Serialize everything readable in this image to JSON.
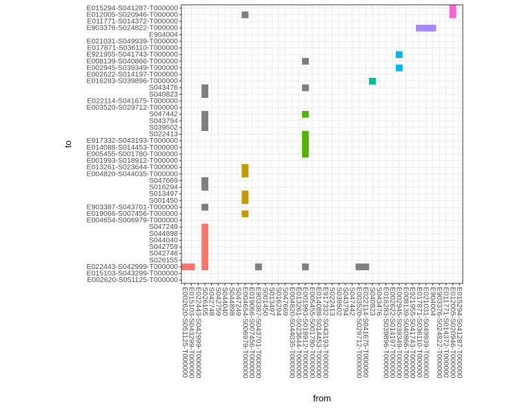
{
  "chart_data": {
    "type": "heatmap",
    "title": "",
    "xlabel": "from",
    "ylabel": "to",
    "grid": true,
    "legend": "none",
    "x_categories": [
      "E002620-S051125-T000000",
      "E015103-S043299-T000000",
      "E022443-S042999-T000000",
      "S026155",
      "S042748",
      "S042759",
      "S044040",
      "S044898",
      "S047249",
      "E004654-S006979-T000000",
      "E019066-S007456-T000000",
      "E903387-S043701-T000000",
      "S001450",
      "S013497",
      "S016294",
      "S047669",
      "E004820-S044035-T000000",
      "E013261-S023644-T000000",
      "E001993-S018912-T000000",
      "E005455-S001780-T000000",
      "E014088-S014453-T000000",
      "E917332-S043193-T000000",
      "S022413",
      "S039502",
      "S043794",
      "S047442",
      "E003520-S029712-T000000",
      "E022114-S041675-T000000",
      "S040823",
      "S043476",
      "E016283-S039896-T000000",
      "E002622-S014197-T000000",
      "E002945-S039349-T000000",
      "E008139-S040866-T000000",
      "E921955-S041743-T000000",
      "E017871-S036110-T000000",
      "E021031-S049939-T000000",
      "E904004",
      "E903376-S024822-T000000",
      "E011771-S014372-T000000",
      "E012005-S020946-T000000",
      "E015294-S041287-T000000"
    ],
    "y_categories": [
      "E002620-S051125-T000000",
      "E015103-S043299-T000000",
      "E022443-S042999-T000000",
      "S026155",
      "S042748",
      "S042759",
      "S044040",
      "S044898",
      "S047249",
      "E004654-S006979-T000000",
      "E019066-S007456-T000000",
      "E903387-S043701-T000000",
      "S001450",
      "S013497",
      "S016294",
      "S047669",
      "E004820-S044035-T000000",
      "E013261-S023644-T000000",
      "E001993-S018912-T000000",
      "E005455-S001780-T000000",
      "E014088-S014453-T000000",
      "E917332-S043193-T000000",
      "S022413",
      "S039502",
      "S043794",
      "S047442",
      "E003520-S029712-T000000",
      "E022114-S041675-T000000",
      "S040823",
      "S043476",
      "E016283-S039896-T000000",
      "E002622-S014197-T000000",
      "E002945-S039349-T000000",
      "E008139-S040866-T000000",
      "E921955-S041743-T000000",
      "E017871-S036110-T000000",
      "E021031-S049939-T000000",
      "E904004",
      "E903376-S024822-T000000",
      "E011771-S014372-T000000",
      "E012005-S020946-T000000",
      "E015294-S041287-T000000"
    ],
    "colors": {
      "red": "#F8766D",
      "gold": "#C49A00",
      "green": "#53B400",
      "teal": "#00C094",
      "blue": "#00B6EB",
      "purple": "#A58AFF",
      "pink": "#FB61D7",
      "grey": "#7F7F7F"
    },
    "cells": [
      {
        "from": "E002620-S051125-T000000",
        "to": "E022443-S042999-T000000",
        "color": "red"
      },
      {
        "from": "E015103-S043299-T000000",
        "to": "E022443-S042999-T000000",
        "color": "red"
      },
      {
        "from": "S026155",
        "to": "E022443-S042999-T000000",
        "color": "red"
      },
      {
        "from": "S026155",
        "to": "S026155",
        "color": "red"
      },
      {
        "from": "S026155",
        "to": "S042748",
        "color": "red"
      },
      {
        "from": "S026155",
        "to": "S042759",
        "color": "red"
      },
      {
        "from": "S026155",
        "to": "S044040",
        "color": "red"
      },
      {
        "from": "S026155",
        "to": "S044898",
        "color": "red"
      },
      {
        "from": "S026155",
        "to": "S047249",
        "color": "red"
      },
      {
        "from": "S026155",
        "to": "E903387-S043701-T000000",
        "color": "grey"
      },
      {
        "from": "S026155",
        "to": "S016294",
        "color": "grey"
      },
      {
        "from": "S026155",
        "to": "S047669",
        "color": "grey"
      },
      {
        "from": "S026155",
        "to": "S039502",
        "color": "grey"
      },
      {
        "from": "S026155",
        "to": "S043794",
        "color": "grey"
      },
      {
        "from": "S026155",
        "to": "S047442",
        "color": "grey"
      },
      {
        "from": "S026155",
        "to": "S040823",
        "color": "grey"
      },
      {
        "from": "S026155",
        "to": "S043476",
        "color": "grey"
      },
      {
        "from": "E004654-S006979-T000000",
        "to": "E019066-S007456-T000000",
        "color": "gold"
      },
      {
        "from": "E004654-S006979-T000000",
        "to": "S001450",
        "color": "gold"
      },
      {
        "from": "E004654-S006979-T000000",
        "to": "S013497",
        "color": "gold"
      },
      {
        "from": "E004654-S006979-T000000",
        "to": "E004820-S044035-T000000",
        "color": "gold"
      },
      {
        "from": "E004654-S006979-T000000",
        "to": "E013261-S023644-T000000",
        "color": "gold"
      },
      {
        "from": "E004654-S006979-T000000",
        "to": "E012005-S020946-T000000",
        "color": "grey"
      },
      {
        "from": "E903387-S043701-T000000",
        "to": "E022443-S042999-T000000",
        "color": "grey"
      },
      {
        "from": "E001993-S018912-T000000",
        "to": "E022443-S042999-T000000",
        "color": "grey"
      },
      {
        "from": "E001993-S018912-T000000",
        "to": "E005455-S001780-T000000",
        "color": "green"
      },
      {
        "from": "E001993-S018912-T000000",
        "to": "E014088-S014453-T000000",
        "color": "green"
      },
      {
        "from": "E001993-S018912-T000000",
        "to": "E917332-S043193-T000000",
        "color": "green"
      },
      {
        "from": "E001993-S018912-T000000",
        "to": "S022413",
        "color": "green"
      },
      {
        "from": "E001993-S018912-T000000",
        "to": "S047442",
        "color": "green"
      },
      {
        "from": "E001993-S018912-T000000",
        "to": "S043476",
        "color": "grey"
      },
      {
        "from": "E001993-S018912-T000000",
        "to": "E008139-S040866-T000000",
        "color": "grey"
      },
      {
        "from": "E003520-S029712-T000000",
        "to": "E022443-S042999-T000000",
        "color": "grey"
      },
      {
        "from": "E022114-S041675-T000000",
        "to": "E022443-S042999-T000000",
        "color": "grey"
      },
      {
        "from": "S040823",
        "to": "E016283-S039896-T000000",
        "color": "teal"
      },
      {
        "from": "E002945-S039349-T000000",
        "to": "E002945-S039349-T000000",
        "color": "blue"
      },
      {
        "from": "E002945-S039349-T000000",
        "to": "E921955-S041743-T000000",
        "color": "blue"
      },
      {
        "from": "E017871-S036110-T000000",
        "to": "E903376-S024822-T000000",
        "color": "purple"
      },
      {
        "from": "E021031-S049939-T000000",
        "to": "E903376-S024822-T000000",
        "color": "purple"
      },
      {
        "from": "E904004",
        "to": "E903376-S024822-T000000",
        "color": "purple"
      },
      {
        "from": "E012005-S020946-T000000",
        "to": "E012005-S020946-T000000",
        "color": "pink"
      },
      {
        "from": "E012005-S020946-T000000",
        "to": "E015294-S041287-T000000",
        "color": "pink"
      }
    ]
  }
}
